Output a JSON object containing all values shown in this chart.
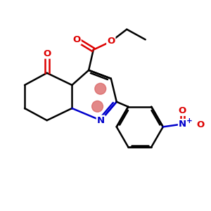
{
  "background_color": "#ffffff",
  "bond_color": "#000000",
  "bond_width": 1.8,
  "N_color": "#0000cc",
  "O_color": "#dd0000",
  "highlight_color": "#d96060",
  "highlight_alpha": 0.75,
  "figsize": [
    3.0,
    3.0
  ],
  "dpi": 100,
  "xlim": [
    0,
    10
  ],
  "ylim": [
    0,
    10
  ]
}
